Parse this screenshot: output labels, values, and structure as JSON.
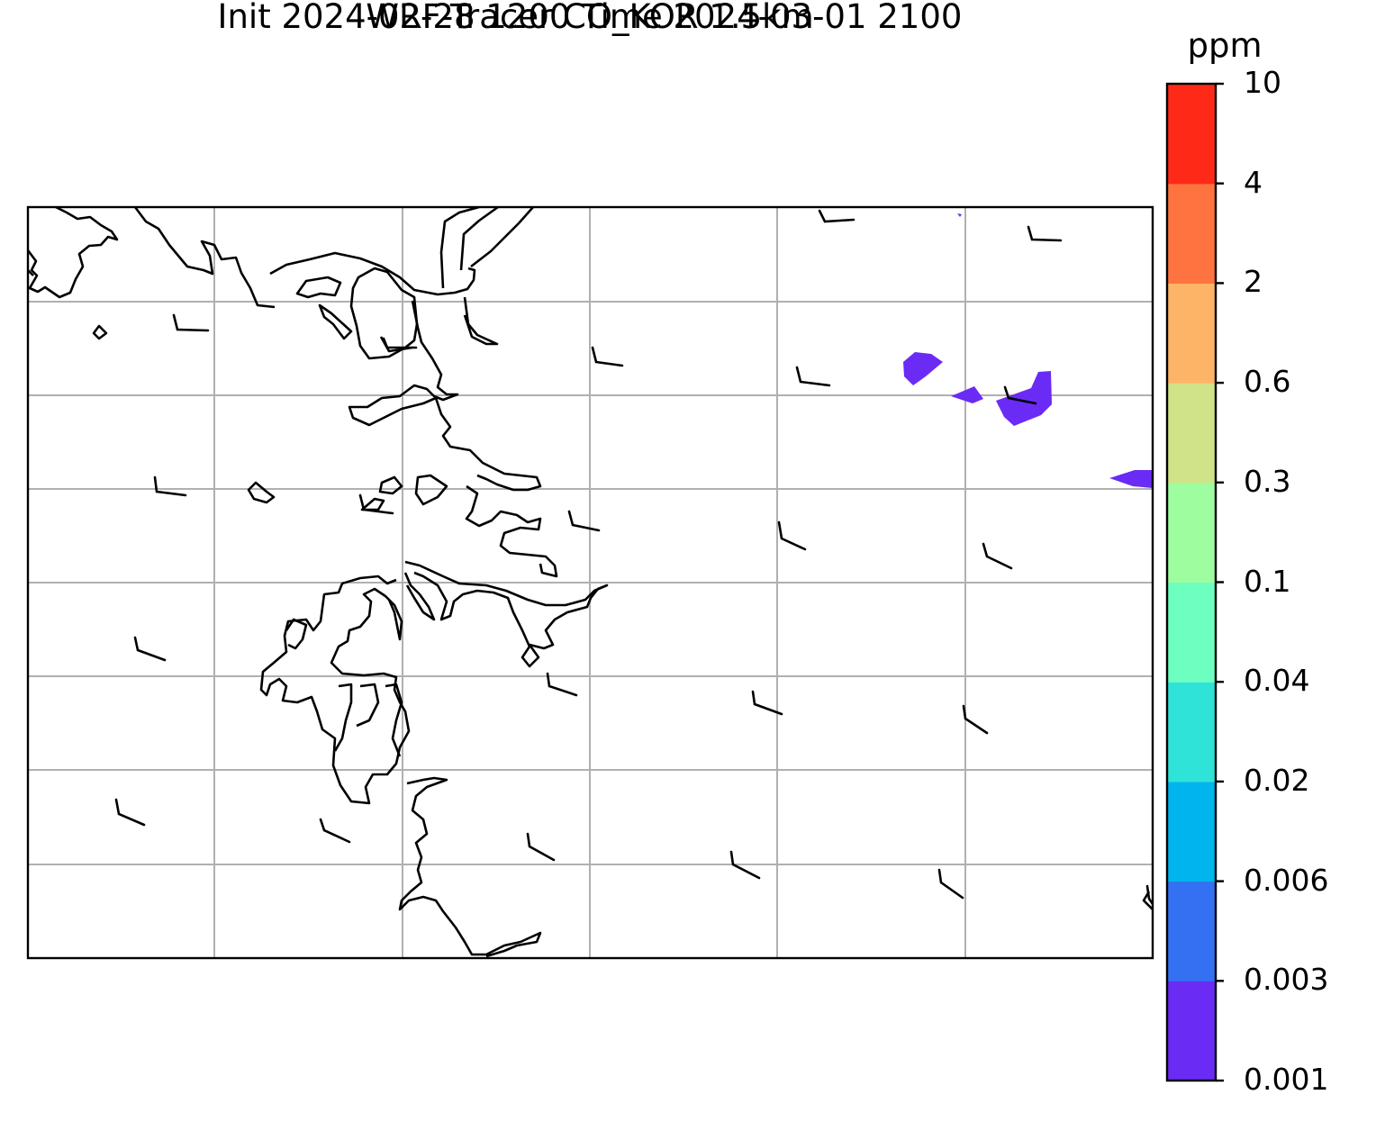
{
  "title": {
    "line1": "WRF-Tracer CO_KOR 1.5km",
    "line2": "Init 2024-02-28 1200 Time 2024-03-01 2100"
  },
  "colorbar": {
    "unit": "ppm",
    "levels": [
      "0.001",
      "0.003",
      "0.006",
      "0.02",
      "0.04",
      "0.1",
      "0.3",
      "0.6",
      "2",
      "4",
      "10"
    ],
    "colors": [
      "#6a2bf5",
      "#3371f2",
      "#00b5ee",
      "#30e3d8",
      "#6cffc0",
      "#9dfd9f",
      "#d0e388",
      "#feb466",
      "#ff7340",
      "#fe2a17"
    ]
  },
  "map": {
    "gridline_color": "#b0b0b0",
    "coastline_color": "#000000",
    "tracer_color": "#6a2bf5"
  }
}
